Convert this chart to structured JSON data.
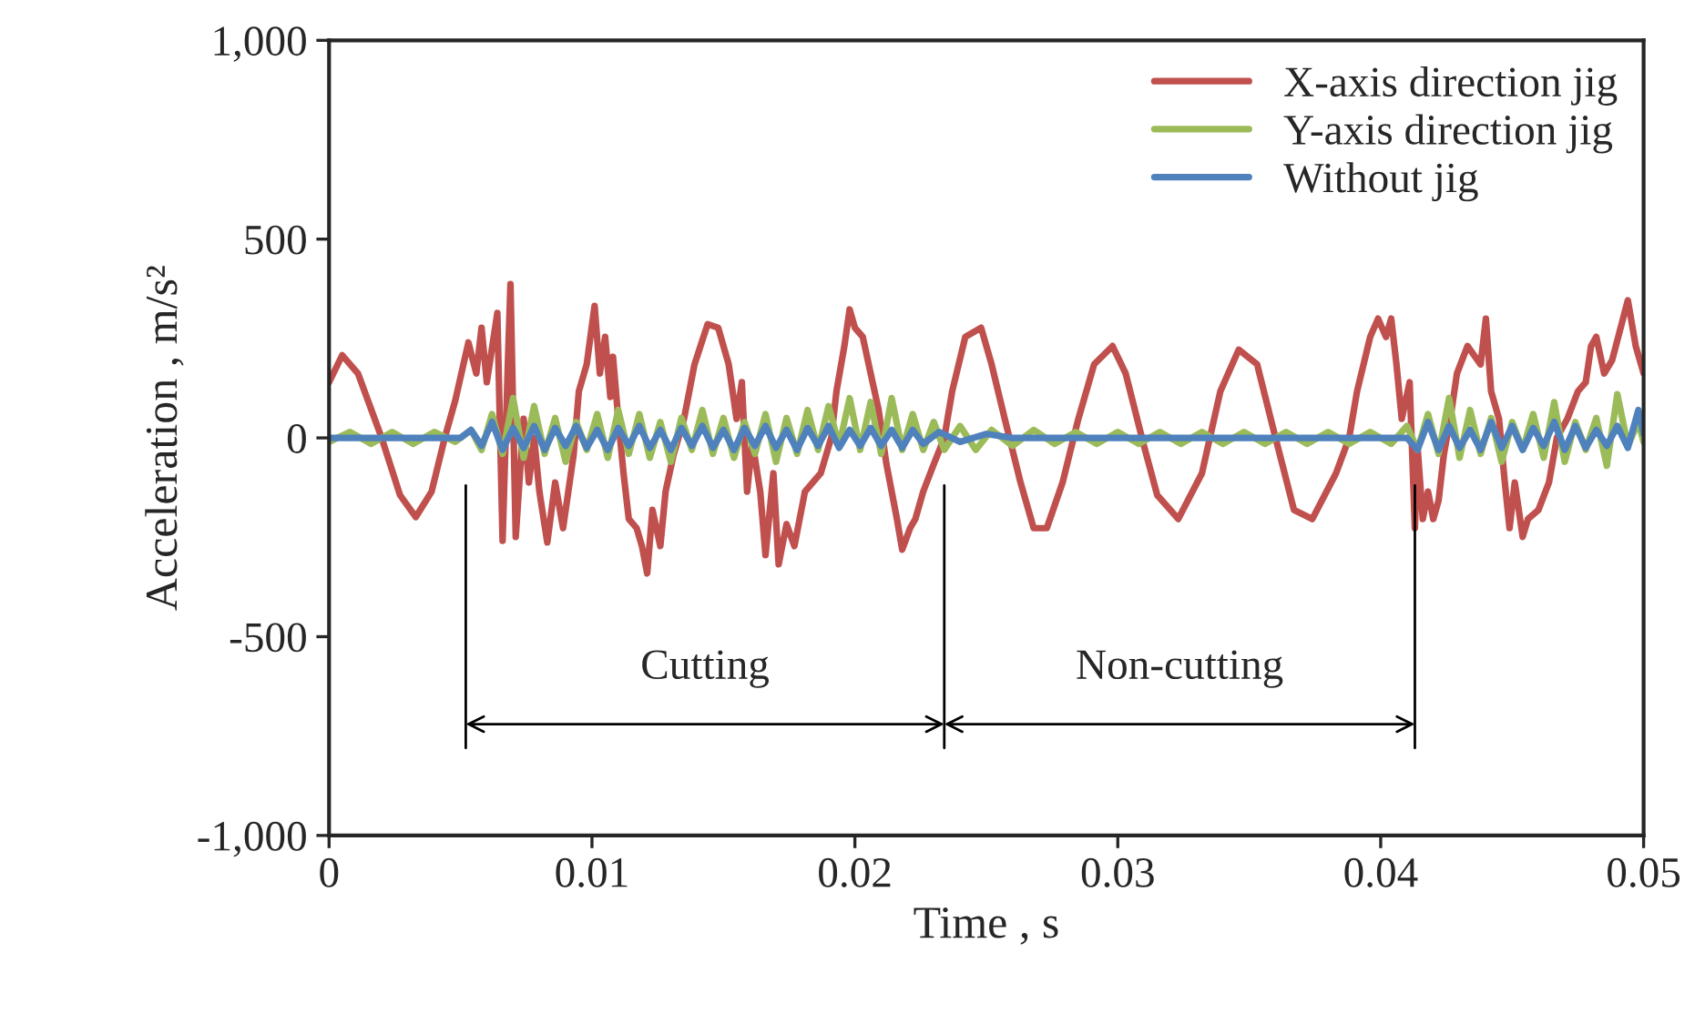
{
  "chart_data": {
    "type": "line",
    "xlabel": "Time , s",
    "ylabel": "Acceleration , m/s²",
    "xlim": [
      0,
      0.05
    ],
    "xticks": [
      0,
      0.01,
      0.02,
      0.03,
      0.04,
      0.05
    ],
    "ylim": [
      -1000,
      1000
    ],
    "yticks": [
      {
        "value": -1000,
        "label": "-1,000"
      },
      {
        "value": -500,
        "label": "-500"
      },
      {
        "value": 0,
        "label": "0"
      },
      {
        "value": 500,
        "label": "500"
      },
      {
        "value": 1000,
        "label": "1,000"
      }
    ],
    "grid": false,
    "legend": "top right",
    "line_style": "solid",
    "marker": "none",
    "ref_lines": [
      {
        "axis": "x",
        "value": 0.0052
      },
      {
        "axis": "x",
        "value": 0.0234
      },
      {
        "axis": "x",
        "value": 0.0413
      }
    ],
    "annotations": [
      "Cutting",
      "Non-cutting"
    ],
    "series": [
      {
        "name": "X-axis direction jig",
        "color": "#c0504d",
        "x": [
          0,
          0.0005,
          0.0011,
          0.002,
          0.0027,
          0.0033,
          0.0039,
          0.0044,
          0.0048,
          0.0053,
          0.0056,
          0.0058,
          0.006,
          0.0064,
          0.0066,
          0.0068,
          0.0069,
          0.0071,
          0.0074,
          0.0076,
          0.0078,
          0.008,
          0.0083,
          0.0086,
          0.0089,
          0.0093,
          0.0095,
          0.0098,
          0.0101,
          0.0103,
          0.0105,
          0.0107,
          0.0108,
          0.011,
          0.0112,
          0.0114,
          0.0117,
          0.0119,
          0.0121,
          0.0123,
          0.0126,
          0.0128,
          0.0131,
          0.0135,
          0.0139,
          0.0144,
          0.0148,
          0.0152,
          0.0155,
          0.0157,
          0.0159,
          0.0161,
          0.0164,
          0.0166,
          0.0169,
          0.0171,
          0.0174,
          0.0177,
          0.0181,
          0.0187,
          0.0191,
          0.0193,
          0.0196,
          0.0198,
          0.02,
          0.0203,
          0.0206,
          0.0209,
          0.0212,
          0.0216,
          0.0218,
          0.0221,
          0.0223,
          0.0226,
          0.023,
          0.0234,
          0.0237,
          0.0242,
          0.0248,
          0.0252,
          0.0257,
          0.0263,
          0.0268,
          0.0273,
          0.0279,
          0.0285,
          0.0291,
          0.0298,
          0.0303,
          0.031,
          0.0315,
          0.0323,
          0.0332,
          0.0339,
          0.0346,
          0.0353,
          0.036,
          0.0367,
          0.0374,
          0.0383,
          0.0388,
          0.0391,
          0.0396,
          0.0399,
          0.0402,
          0.0404,
          0.0406,
          0.0408,
          0.0411,
          0.0413,
          0.0414,
          0.0416,
          0.0418,
          0.042,
          0.0422,
          0.0424,
          0.0427,
          0.0429,
          0.0433,
          0.0438,
          0.044,
          0.0442,
          0.0445,
          0.0447,
          0.0449,
          0.0451,
          0.0454,
          0.0456,
          0.046,
          0.0464,
          0.0467,
          0.0471,
          0.0475,
          0.0478,
          0.048,
          0.0482,
          0.0485,
          0.0488,
          0.0494,
          0.0497,
          0.05
        ],
        "values": [
          140,
          208,
          162,
          0,
          -144,
          -199,
          -135,
          0,
          94,
          240,
          162,
          277,
          140,
          314,
          -259,
          185,
          387,
          -249,
          48,
          -112,
          0,
          -135,
          -263,
          -112,
          -227,
          -43,
          117,
          185,
          332,
          162,
          254,
          103,
          204,
          48,
          -89,
          -204,
          -227,
          -272,
          -341,
          -181,
          -272,
          -135,
          -43,
          48,
          185,
          286,
          277,
          185,
          48,
          140,
          -135,
          -11,
          -135,
          -295,
          -89,
          -318,
          -217,
          -272,
          -135,
          -89,
          0,
          117,
          231,
          323,
          277,
          254,
          162,
          71,
          -66,
          -204,
          -281,
          -227,
          -204,
          -135,
          -66,
          0,
          117,
          254,
          277,
          185,
          48,
          -112,
          -227,
          -227,
          -112,
          48,
          185,
          231,
          162,
          -21,
          -144,
          -204,
          -89,
          117,
          222,
          185,
          0,
          -181,
          -204,
          -89,
          0,
          117,
          254,
          300,
          254,
          300,
          185,
          48,
          140,
          -227,
          -21,
          -204,
          -135,
          -204,
          -158,
          -43,
          71,
          162,
          231,
          185,
          300,
          117,
          48,
          -98,
          -227,
          -112,
          -249,
          -204,
          -181,
          -112,
          0,
          48,
          117,
          140,
          231,
          254,
          162,
          195,
          346,
          231,
          162
        ]
      },
      {
        "name": "Y-axis direction jig",
        "color": "#9bbb59",
        "x": [
          0,
          0.0008,
          0.0016,
          0.0024,
          0.0032,
          0.004,
          0.0048,
          0.0054,
          0.0058,
          0.0062,
          0.0066,
          0.007,
          0.0074,
          0.0078,
          0.0082,
          0.0086,
          0.009,
          0.0094,
          0.0098,
          0.0102,
          0.0106,
          0.011,
          0.0114,
          0.0118,
          0.0122,
          0.0126,
          0.013,
          0.0134,
          0.0138,
          0.0142,
          0.0146,
          0.015,
          0.0154,
          0.0158,
          0.0162,
          0.0166,
          0.017,
          0.0174,
          0.0178,
          0.0182,
          0.0186,
          0.019,
          0.0194,
          0.0198,
          0.0202,
          0.0206,
          0.021,
          0.0214,
          0.0218,
          0.0222,
          0.0226,
          0.023,
          0.0234,
          0.024,
          0.0246,
          0.0252,
          0.026,
          0.0268,
          0.0276,
          0.0284,
          0.0292,
          0.03,
          0.0308,
          0.0316,
          0.0324,
          0.0332,
          0.034,
          0.0348,
          0.0356,
          0.0364,
          0.0372,
          0.038,
          0.0388,
          0.0396,
          0.0404,
          0.041,
          0.0414,
          0.0418,
          0.0422,
          0.0426,
          0.043,
          0.0434,
          0.0438,
          0.0442,
          0.0446,
          0.045,
          0.0454,
          0.0458,
          0.0462,
          0.0466,
          0.047,
          0.0474,
          0.0478,
          0.0482,
          0.0486,
          0.049,
          0.0494,
          0.0498,
          0.05
        ],
        "values": [
          -10,
          15,
          -15,
          15,
          -15,
          15,
          -10,
          20,
          -30,
          60,
          -40,
          100,
          -50,
          80,
          -40,
          50,
          -60,
          40,
          -30,
          60,
          -50,
          70,
          -40,
          60,
          -50,
          40,
          -60,
          50,
          -30,
          70,
          -40,
          50,
          -50,
          40,
          -40,
          60,
          -60,
          50,
          -40,
          70,
          -30,
          80,
          -20,
          100,
          -30,
          90,
          -40,
          100,
          -30,
          60,
          -30,
          40,
          -30,
          30,
          -30,
          20,
          -20,
          20,
          -15,
          15,
          -15,
          15,
          -15,
          15,
          -15,
          15,
          -15,
          15,
          -15,
          15,
          -15,
          15,
          -15,
          15,
          -15,
          30,
          -30,
          60,
          -40,
          100,
          -50,
          70,
          -40,
          50,
          -60,
          40,
          -30,
          60,
          -50,
          90,
          -60,
          40,
          -30,
          50,
          -70,
          110,
          -20,
          40,
          -10
        ]
      },
      {
        "name": "Without jig",
        "color": "#4f81bd",
        "x": [
          0,
          0.005,
          0.0054,
          0.0058,
          0.0062,
          0.0066,
          0.007,
          0.0074,
          0.0078,
          0.0082,
          0.0086,
          0.009,
          0.0094,
          0.0098,
          0.0102,
          0.0106,
          0.011,
          0.0114,
          0.0118,
          0.0122,
          0.0126,
          0.013,
          0.0134,
          0.0138,
          0.0142,
          0.0146,
          0.015,
          0.0154,
          0.0158,
          0.0162,
          0.0166,
          0.017,
          0.0174,
          0.0178,
          0.0182,
          0.0186,
          0.019,
          0.0194,
          0.0198,
          0.0202,
          0.0206,
          0.021,
          0.0214,
          0.0218,
          0.0222,
          0.0226,
          0.0232,
          0.024,
          0.025,
          0.026,
          0.041,
          0.0414,
          0.0418,
          0.0422,
          0.0426,
          0.043,
          0.0434,
          0.0438,
          0.0442,
          0.0446,
          0.045,
          0.0454,
          0.0458,
          0.0462,
          0.0466,
          0.047,
          0.0474,
          0.0478,
          0.0482,
          0.0486,
          0.049,
          0.0494,
          0.0498,
          0.05
        ],
        "values": [
          0,
          0,
          20,
          -20,
          40,
          -30,
          25,
          -25,
          30,
          -30,
          25,
          -20,
          30,
          -25,
          20,
          -30,
          25,
          -20,
          30,
          -25,
          20,
          -30,
          25,
          -20,
          30,
          -25,
          20,
          -30,
          25,
          -20,
          30,
          -25,
          20,
          -30,
          25,
          -20,
          30,
          -25,
          20,
          -20,
          25,
          -20,
          20,
          -25,
          20,
          -15,
          15,
          -10,
          10,
          0,
          0,
          -30,
          40,
          -30,
          30,
          -25,
          20,
          -30,
          40,
          -25,
          30,
          -30,
          25,
          -20,
          40,
          -30,
          30,
          -25,
          20,
          -20,
          30,
          -25,
          70,
          10
        ]
      }
    ]
  }
}
